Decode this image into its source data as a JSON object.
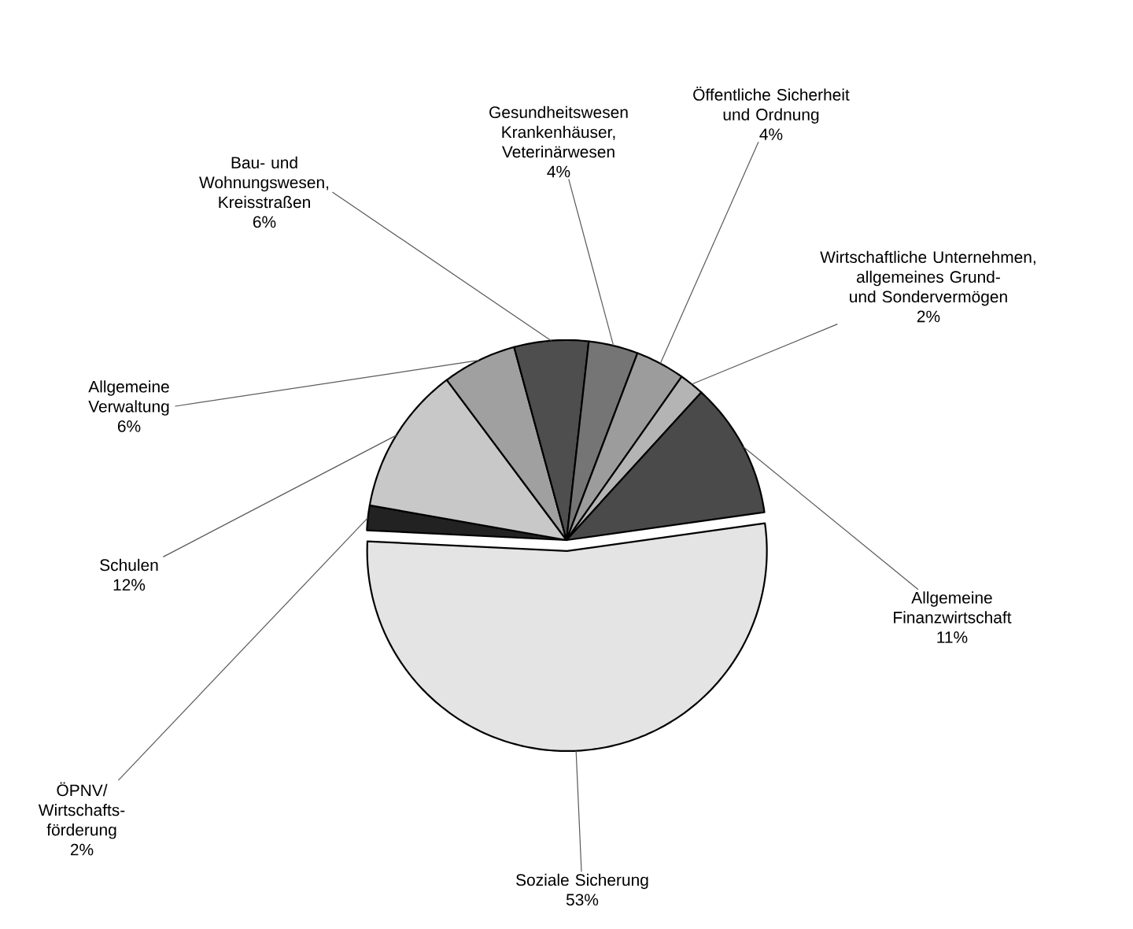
{
  "chart_data": {
    "type": "pie",
    "categories": [
      "Soziale Sicherung",
      "ÖPNV/ Wirtschafts- förderung",
      "Schulen",
      "Allgemeine Verwaltung",
      "Bau- und Wohnungswesen, Kreisstraßen",
      "Gesundheitswesen Krankenhäuser, Veterinärwesen",
      "Öffentliche Sicherheit und Ordnung",
      "Wirtschaftliche Unternehmen, allgemeines Grund- und Sondervermögen",
      "Allgemeine Finanzwirtschaft"
    ],
    "values": [
      53,
      2,
      12,
      6,
      6,
      4,
      4,
      2,
      11
    ],
    "value_labels": [
      "53%",
      "2%",
      "12%",
      "6%",
      "6%",
      "4%",
      "4%",
      "2%",
      "11%"
    ],
    "colors": [
      "#e4e4e4",
      "#222222",
      "#c8c8c8",
      "#a0a0a0",
      "#4e4e4e",
      "#757575",
      "#9c9c9c",
      "#b4b4b4",
      "#4a4a4a"
    ]
  }
}
